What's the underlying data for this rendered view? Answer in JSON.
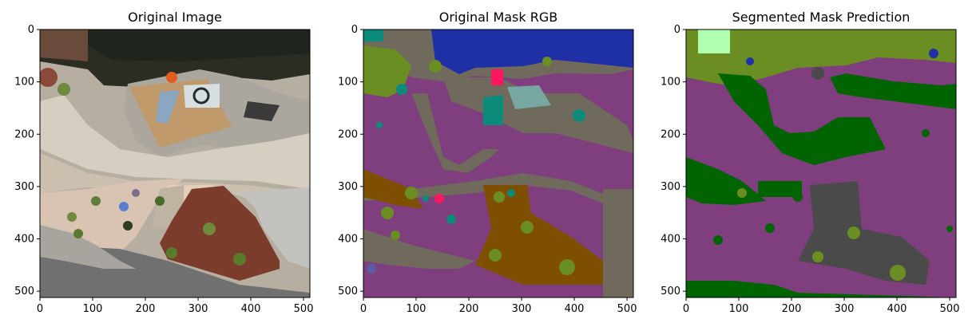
{
  "chart_data": [
    {
      "type": "image",
      "title": "Original Image",
      "xlim": [
        0,
        512
      ],
      "ylim": [
        512,
        0
      ],
      "xticks": [
        0,
        100,
        200,
        300,
        400,
        500
      ],
      "yticks": [
        0,
        100,
        200,
        300,
        400,
        500
      ],
      "grid": false
    },
    {
      "type": "image",
      "title": "Original Mask RGB",
      "xlim": [
        0,
        512
      ],
      "ylim": [
        512,
        0
      ],
      "xticks": [
        0,
        100,
        200,
        300,
        400,
        500
      ],
      "yticks": [
        0,
        100,
        200,
        300,
        400,
        500
      ],
      "grid": false
    },
    {
      "type": "image",
      "title": "Segmented Mask Prediction",
      "xlim": [
        0,
        512
      ],
      "ylim": [
        512,
        0
      ],
      "xticks": [
        0,
        100,
        200,
        300,
        400,
        500
      ],
      "yticks": [
        0,
        100,
        200,
        300,
        400,
        500
      ],
      "grid": false
    }
  ],
  "colors": {
    "paved_area": "#7f3f7f",
    "vegetation": "#6b8e23",
    "dark_vegetation": "#006400",
    "water": "#1f2fa6",
    "obstacle": "#6f6a5b",
    "gravel": "#7f4f00",
    "person": "#ff1660",
    "other": "#0c8a7a",
    "pool_light": "#77a7a0",
    "rocks": "#4a4a4a",
    "light_vegetation": "#b0ffb0"
  }
}
